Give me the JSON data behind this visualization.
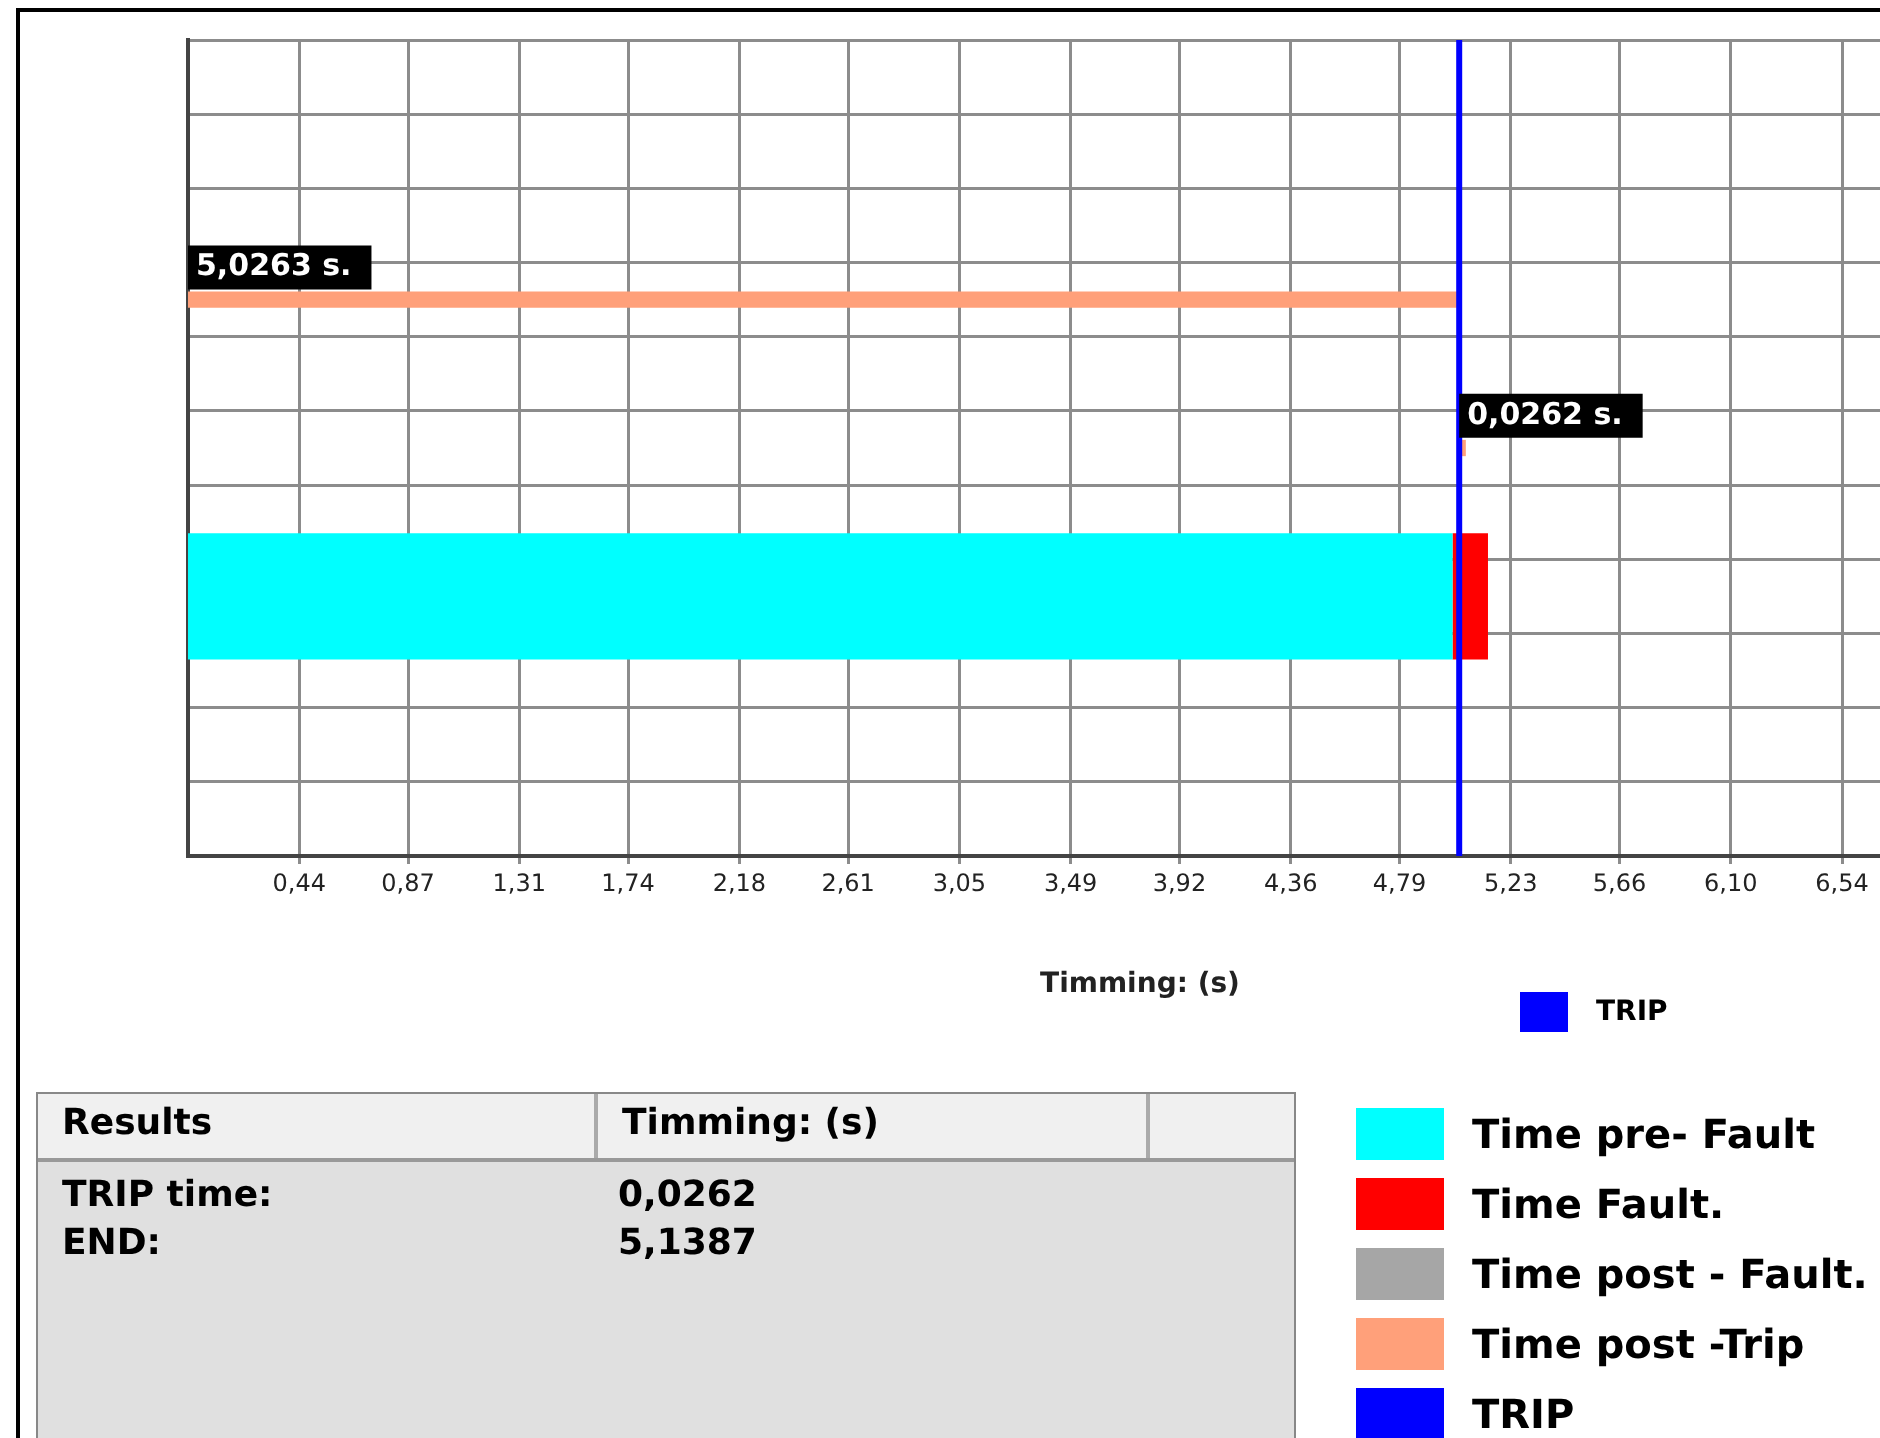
{
  "chart_data": {
    "type": "bar",
    "orientation": "horizontal",
    "stacked": true,
    "xlabel": "Timming: (s)",
    "categories": [
      null,
      null,
      null,
      null,
      null,
      null,
      null,
      null,
      null,
      null,
      null
    ],
    "series": [
      {
        "name": "Time pre- Fault",
        "color": "#00ffff",
        "values": [
          null,
          null,
          null,
          null,
          null,
          null,
          null,
          5.0,
          null,
          null,
          null
        ]
      },
      {
        "name": "Time Fault.",
        "color": "#ff0000",
        "values": [
          null,
          null,
          null,
          null,
          null,
          null,
          null,
          0.14,
          null,
          null,
          null
        ]
      },
      {
        "name": "Time post - Fault.",
        "color": "#a6a6a6",
        "values": [
          null,
          null,
          null,
          null,
          null,
          null,
          null,
          null,
          null,
          null,
          null
        ]
      },
      {
        "name": "Time post -Trip",
        "color": "#ffa07a",
        "values": [
          null,
          null,
          null,
          5.0263,
          null,
          0.0262,
          null,
          null,
          null,
          null,
          null
        ],
        "base": [
          null,
          null,
          null,
          0,
          null,
          5.0262,
          null,
          null,
          null,
          null,
          null
        ],
        "value_labels": [
          null,
          null,
          null,
          "5,0263 s.",
          null,
          "0,0262 s.",
          null,
          null,
          null,
          null,
          null
        ]
      }
    ],
    "xlim": [
      0,
      6.69
    ],
    "xticks": [
      {
        "value": 0.44,
        "label": "0,44"
      },
      {
        "value": 0.87,
        "label": "0,87"
      },
      {
        "value": 1.31,
        "label": "1,31"
      },
      {
        "value": 1.74,
        "label": "1,74"
      },
      {
        "value": 2.18,
        "label": "2,18"
      },
      {
        "value": 2.61,
        "label": "2,61"
      },
      {
        "value": 3.05,
        "label": "3,05"
      },
      {
        "value": 3.49,
        "label": "3,49"
      },
      {
        "value": 3.92,
        "label": "3,92"
      },
      {
        "value": 4.36,
        "label": "4,36"
      },
      {
        "value": 4.79,
        "label": "4,79"
      },
      {
        "value": 5.23,
        "label": "5,23"
      },
      {
        "value": 5.66,
        "label": "5,66"
      },
      {
        "value": 6.1,
        "label": "6,10"
      },
      {
        "value": 6.54,
        "label": "6,54"
      }
    ],
    "ref_lines": [
      {
        "axis": "x",
        "value": 5.0262,
        "label": "TRIP",
        "color": "#0000ff"
      }
    ],
    "grid": true,
    "legend": "bottom right",
    "tick_labels": "x",
    "annotations": [
      "Results",
      "Timming: (s)",
      "TRIP time:",
      "0,0262",
      "END:",
      "5,1387"
    ]
  }
}
